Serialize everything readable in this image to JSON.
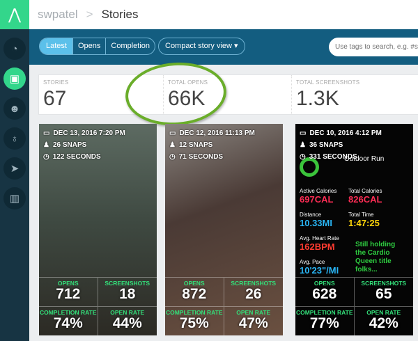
{
  "header": {
    "breadcrumb_root": "swpatel",
    "breadcrumb_sep": ">",
    "title": "Stories"
  },
  "toolbar": {
    "sort_tabs": [
      "Latest",
      "Opens",
      "Completion"
    ],
    "active_tab": "Latest",
    "view_select": "Compact story view ▾",
    "search_placeholder": "Use tags to search, e.g. #s"
  },
  "stats": [
    {
      "label": "STORIES",
      "value": "67"
    },
    {
      "label": "TOTAL OPENS",
      "value": "66K"
    },
    {
      "label": "TOTAL SCREENSHOTS",
      "value": "1.3K"
    }
  ],
  "colors": {
    "accent": "#33d68b",
    "toolbar": "#135d80",
    "sidebar": "#173443",
    "metric_label": "#33e07a",
    "highlight": "#6aad2a"
  },
  "cards": [
    {
      "date": "DEC 13, 2016 7:20 PM",
      "snaps": "26 SNAPS",
      "seconds": "122 SECONDS",
      "opens": "712",
      "screenshots": "18",
      "completion_rate": "74%",
      "open_rate": "44%"
    },
    {
      "date": "DEC 12, 2016 11:13 PM",
      "snaps": "12 SNAPS",
      "seconds": "71 SECONDS",
      "opens": "872",
      "screenshots": "26",
      "completion_rate": "75%",
      "open_rate": "47%"
    },
    {
      "date": "DEC 10, 2016 4:12 PM",
      "snaps": "36 SNAPS",
      "seconds": "331 SECONDS",
      "opens": "628",
      "screenshots": "65",
      "completion_rate": "77%",
      "open_rate": "42%",
      "screen": {
        "title": "Outdoor Run",
        "active_cal": "Active Calories",
        "active_cal_v": "697CAL",
        "total_cal": "Total Calories",
        "total_cal_v": "826CAL",
        "distance": "Distance",
        "distance_v": "10.33MI",
        "time": "Total Time",
        "time_v": "1:47:25",
        "hr": "Avg. Heart Rate",
        "hr_v": "162BPM",
        "pace": "Avg. Pace",
        "pace_v": "10'23\"/MI",
        "caption": "Still holding the Cardio Queen title folks..."
      }
    }
  ],
  "labels": {
    "opens": "OPENS",
    "screenshots": "SCREENSHOTS",
    "completion_rate": "COMPLETION RATE",
    "open_rate": "OPEN RATE"
  }
}
